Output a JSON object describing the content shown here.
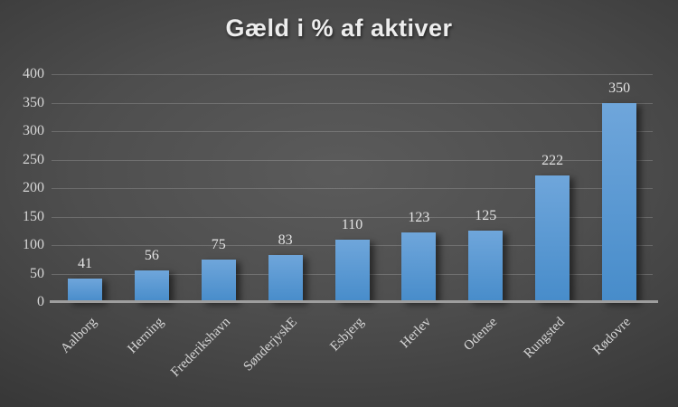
{
  "chart_data": {
    "type": "bar",
    "title": "Gæld i % af aktiver",
    "categories": [
      "Aalborg",
      "Herning",
      "Frederikshavn",
      "SønderjyskE",
      "Esbjerg",
      "Herlev",
      "Odense",
      "Rungsted",
      "Rødovre"
    ],
    "values": [
      41,
      56,
      75,
      83,
      110,
      123,
      125,
      222,
      350
    ],
    "data_labels": [
      "41",
      "56",
      "75",
      "83",
      "110",
      "123",
      "125",
      "222",
      "350"
    ],
    "xlabel": "",
    "ylabel": "",
    "ylim": [
      0,
      400
    ],
    "ytick_step": 50,
    "yticks": [
      "0",
      "50",
      "100",
      "150",
      "200",
      "250",
      "300",
      "350",
      "400"
    ],
    "grid": true,
    "legend": "none",
    "category_label_rotation_deg": -45,
    "colors": {
      "bar_top": "#6fa6db",
      "bar_bottom": "#478cca",
      "title": "#ededed",
      "tick_label": "#d6d6d6",
      "value_label": "#e3e3e3",
      "axis_line": "#9e9e9e",
      "gridline": "rgba(255,255,255,0.18)",
      "background_center": "#5b5b5b",
      "background_edge": "#232323"
    }
  }
}
